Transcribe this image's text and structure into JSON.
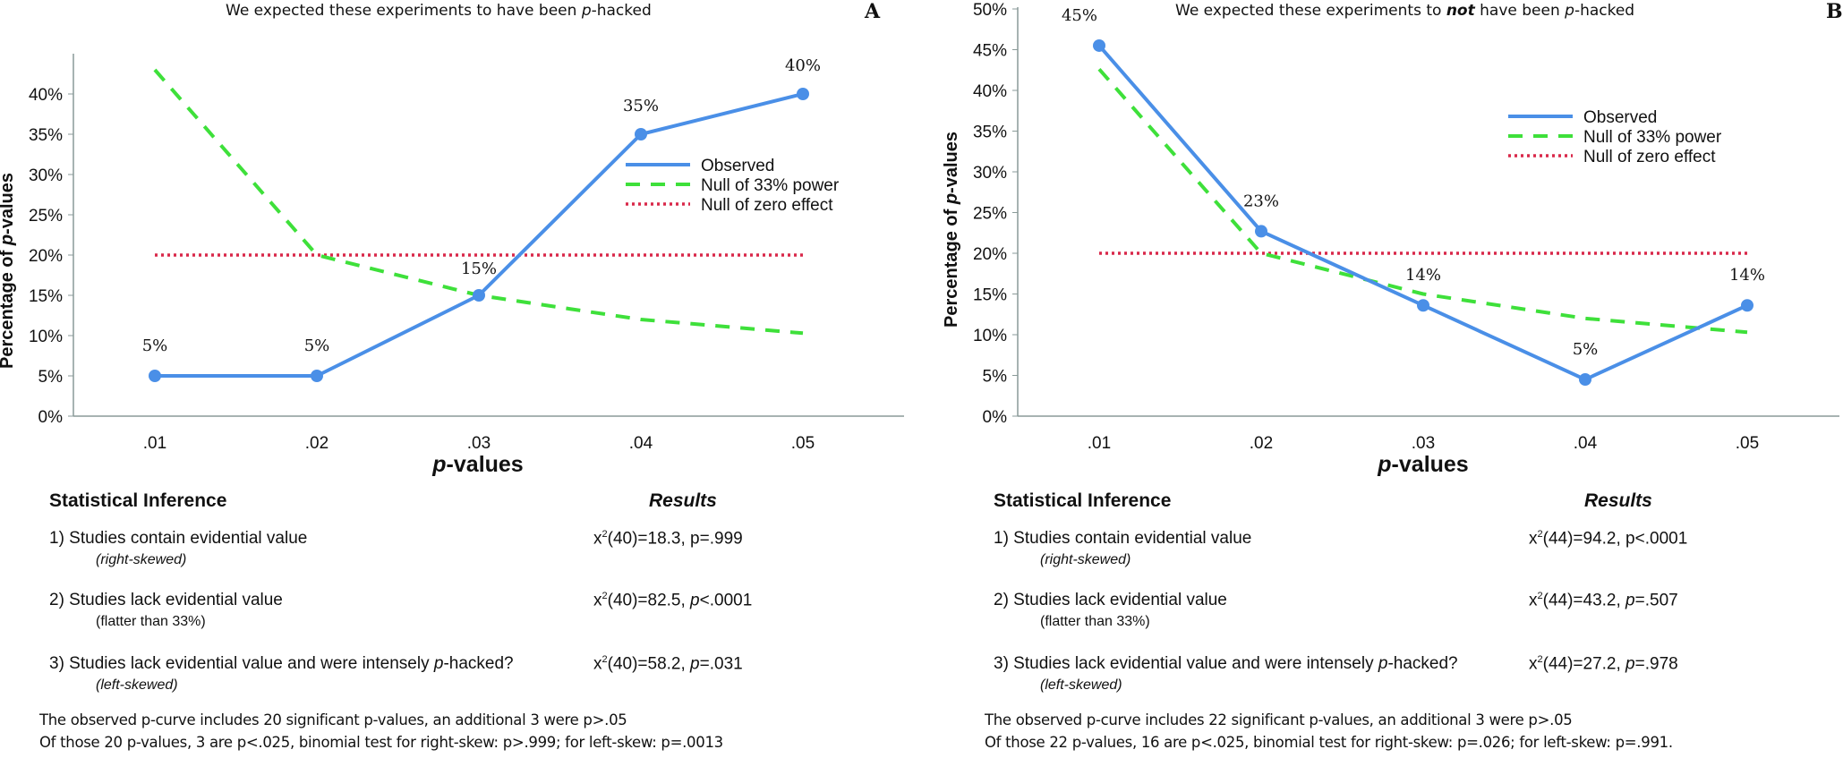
{
  "panels": [
    {
      "id": "A",
      "title_parts": [
        "We expected these experiments to have been ",
        "p",
        "-hacked"
      ],
      "letter": "A",
      "x_title_p": "p",
      "x_title_rest": "-values",
      "stats": {
        "header": "Statistical Inference",
        "results_header": "Results",
        "rows": [
          {
            "label": "1) Studies contain evidential value",
            "sub": "(right-skewed)",
            "sub_italic": true,
            "result_pre": "x",
            "result_sup": "2",
            "result_df": "(40)=18.3, ",
            "result_p": "p",
            "result_val": "=.999",
            "p_italic": false
          },
          {
            "label": "2) Studies lack evidential value",
            "sub": "(flatter than 33%)",
            "sub_italic": false,
            "result_pre": "x",
            "result_sup": "2",
            "result_df": "(40)=82.5, ",
            "result_p": "p",
            "result_val": "<.0001",
            "p_italic": true
          },
          {
            "label_pre": "3) Studies lack evidential value and were intensely ",
            "label_p": "p",
            "label_post": "-hacked?",
            "sub": "(left-skewed)",
            "sub_italic": true,
            "result_pre": "x",
            "result_sup": "2",
            "result_df": "(40)=58.2, ",
            "result_p": "p",
            "result_val": "=.031",
            "p_italic": true
          }
        ]
      },
      "footer": [
        "The observed p-curve includes 20 significant p-values, an additional 3 were p>.05",
        "Of those 20 p-values, 3 are p<.025, binomial test for right-skew: p>.999; for left-skew: p=.0013"
      ]
    },
    {
      "id": "B",
      "title_parts": [
        "We expected these experiments to ",
        "not",
        " have been ",
        "p",
        "-hacked"
      ],
      "letter": "B",
      "x_title_p": "p",
      "x_title_rest": "-values",
      "stats": {
        "header": "Statistical Inference",
        "results_header": "Results",
        "rows": [
          {
            "label": "1) Studies contain evidential value",
            "sub": "(right-skewed)",
            "sub_italic": true,
            "result_pre": "x",
            "result_sup": "2",
            "result_df": "(44)=94.2, ",
            "result_p": "p",
            "result_val": "<.0001",
            "p_italic": false
          },
          {
            "label": "2) Studies lack evidential value",
            "sub": "(flatter than 33%)",
            "sub_italic": false,
            "result_pre": "x",
            "result_sup": "2",
            "result_df": "(44)=43.2, ",
            "result_p": "p",
            "result_val": "=.507",
            "p_italic": true
          },
          {
            "label_pre": "3) Studies lack evidential value and were intensely ",
            "label_p": "p",
            "label_post": "-hacked?",
            "sub": "(left-skewed)",
            "sub_italic": true,
            "result_pre": "x",
            "result_sup": "2",
            "result_df": "(44)=27.2, ",
            "result_p": "p",
            "result_val": "=.978",
            "p_italic": true
          }
        ]
      },
      "footer": [
        "The observed p-curve includes 22 significant p-values, an additional 3 were p>.05",
        "Of those 22 p-values, 16 are p<.025, binomial test for right-skew: p=.026; for left-skew: p=.991."
      ]
    }
  ],
  "colors": {
    "observed": "#4a8fe7",
    "null33": "#3ee03a",
    "null0": "#d9284a",
    "axis": "#8a9a98"
  },
  "chart_data": [
    {
      "type": "line",
      "title": "We expected these experiments to have been p-hacked",
      "panel_label": "A",
      "xlabel": "p-values",
      "ylabel": "Percentage of p-values",
      "categories": [
        ".01",
        ".02",
        ".03",
        ".04",
        ".05"
      ],
      "yticks": [
        "0%",
        "5%",
        "10%",
        "15%",
        "20%",
        "25%",
        "30%",
        "35%",
        "40%"
      ],
      "ylim": [
        0,
        45
      ],
      "legend_position": "right",
      "series": [
        {
          "name": "Observed",
          "style": "solid",
          "values": [
            5,
            5,
            15,
            35,
            40
          ],
          "labels": [
            "5%",
            "5%",
            "15%",
            "35%",
            "40%"
          ]
        },
        {
          "name": "Null of 33% power",
          "style": "dashed",
          "values": [
            43,
            20,
            15,
            12,
            10.3
          ]
        },
        {
          "name": "Null of zero effect",
          "style": "dotted",
          "values": [
            20,
            20,
            20,
            20,
            20
          ]
        }
      ]
    },
    {
      "type": "line",
      "title": "We expected these experiments to not have been p-hacked",
      "panel_label": "B",
      "xlabel": "p-values",
      "ylabel": "Percentage of p-values",
      "categories": [
        ".01",
        ".02",
        ".03",
        ".04",
        ".05"
      ],
      "yticks": [
        "0%",
        "5%",
        "10%",
        "15%",
        "20%",
        "25%",
        "30%",
        "35%",
        "40%",
        "45%",
        "50%"
      ],
      "ylim": [
        0,
        50
      ],
      "legend_position": "top-right",
      "series": [
        {
          "name": "Observed",
          "style": "solid",
          "values": [
            45.5,
            22.7,
            13.6,
            4.5,
            13.6
          ],
          "labels": [
            "45%",
            "23%",
            "14%",
            "5%",
            "14%"
          ]
        },
        {
          "name": "Null of 33% power",
          "style": "dashed",
          "values": [
            42.6,
            20,
            15,
            12,
            10.3
          ]
        },
        {
          "name": "Null of zero effect",
          "style": "dotted",
          "values": [
            20,
            20,
            20,
            20,
            20
          ]
        }
      ]
    }
  ]
}
